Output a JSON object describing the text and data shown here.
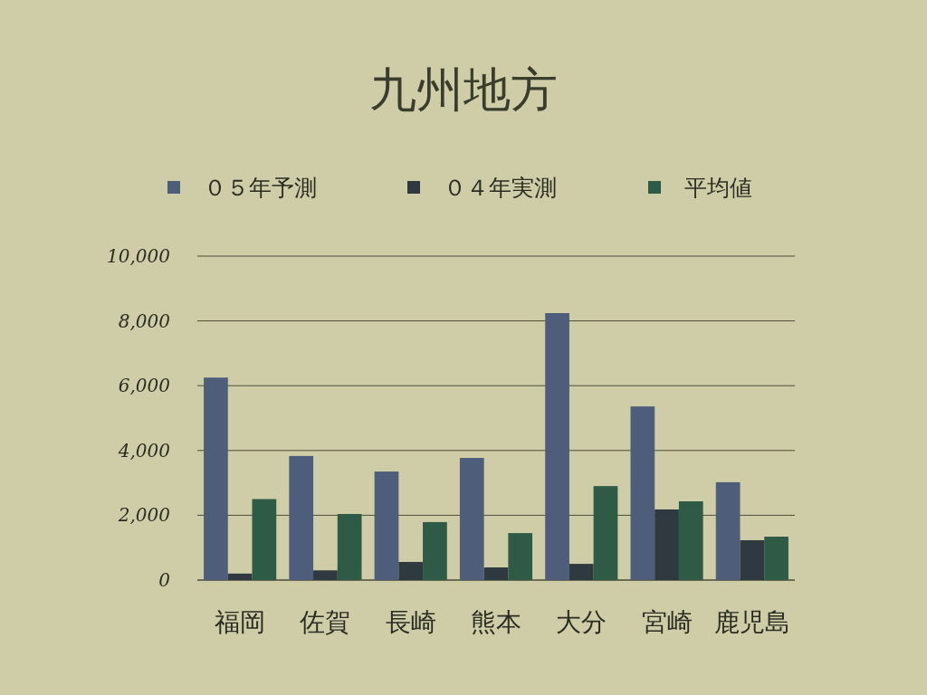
{
  "chart_data": {
    "type": "bar",
    "title": "九州地方",
    "categories": [
      "福岡",
      "佐賀",
      "長崎",
      "熊本",
      "大分",
      "宮崎",
      "鹿児島"
    ],
    "series": [
      {
        "name": "０５年予測",
        "color": "#4e5d7a",
        "values": [
          6250,
          3830,
          3350,
          3770,
          8240,
          5360,
          3020
        ]
      },
      {
        "name": "０４年実測",
        "color": "#2e3a3f",
        "values": [
          200,
          300,
          560,
          390,
          500,
          2180,
          1230
        ]
      },
      {
        "name": "平均値",
        "color": "#2f5a45",
        "values": [
          2500,
          2040,
          1790,
          1450,
          2900,
          2430,
          1340
        ]
      }
    ],
    "ylim": [
      0,
      10000
    ],
    "yticks": [
      {
        "value": 0,
        "label": "0"
      },
      {
        "value": 2000,
        "label": "2,000"
      },
      {
        "value": 4000,
        "label": "4,000"
      },
      {
        "value": 6000,
        "label": "6,000"
      },
      {
        "value": 8000,
        "label": "8,000"
      },
      {
        "value": 10000,
        "label": "10,000"
      }
    ],
    "grid": "y",
    "legend": "top"
  }
}
